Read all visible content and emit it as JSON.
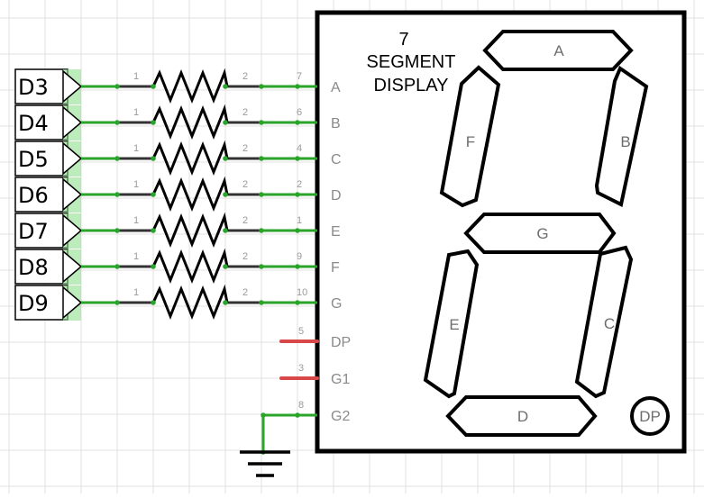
{
  "colors": {
    "wire": "#2aa52a",
    "wire_dark": "#333333",
    "unconnected": "#d94848",
    "pad_glow": "#8fe08f",
    "grid": "#e2e2e2"
  },
  "display": {
    "title_line1": "7",
    "title_line2": "SEGMENT",
    "title_line3": "DISPLAY",
    "segments": {
      "a": "A",
      "b": "B",
      "c": "C",
      "d": "D",
      "e": "E",
      "f": "F",
      "g": "G",
      "dp": "DP"
    }
  },
  "channels": [
    {
      "net": "D3",
      "r_pin1": "1",
      "r_pin2": "2",
      "disp_pin": "7",
      "disp_name": "A"
    },
    {
      "net": "D4",
      "r_pin1": "1",
      "r_pin2": "2",
      "disp_pin": "6",
      "disp_name": "B"
    },
    {
      "net": "D5",
      "r_pin1": "1",
      "r_pin2": "2",
      "disp_pin": "4",
      "disp_name": "C"
    },
    {
      "net": "D6",
      "r_pin1": "1",
      "r_pin2": "2",
      "disp_pin": "2",
      "disp_name": "D"
    },
    {
      "net": "D7",
      "r_pin1": "1",
      "r_pin2": "2",
      "disp_pin": "1",
      "disp_name": "E"
    },
    {
      "net": "D8",
      "r_pin1": "1",
      "r_pin2": "2",
      "disp_pin": "9",
      "disp_name": "F"
    },
    {
      "net": "D9",
      "r_pin1": "1",
      "r_pin2": "2",
      "disp_pin": "10",
      "disp_name": "G"
    }
  ],
  "extra_pins": [
    {
      "pin": "5",
      "name": "DP",
      "connected": false
    },
    {
      "pin": "3",
      "name": "G1",
      "connected": false
    },
    {
      "pin": "8",
      "name": "G2",
      "connected": true
    }
  ]
}
